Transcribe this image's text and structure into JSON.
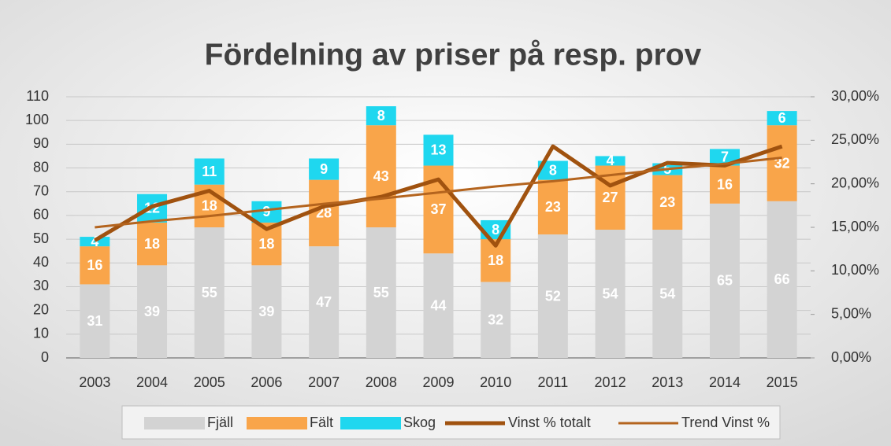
{
  "chart_data": {
    "type": "bar",
    "stacked": true,
    "title": "Fördelning av priser på resp. prov",
    "categories": [
      "2003",
      "2004",
      "2005",
      "2006",
      "2007",
      "2008",
      "2009",
      "2010",
      "2011",
      "2012",
      "2013",
      "2014",
      "2015"
    ],
    "series": [
      {
        "name": "Fjäll",
        "type": "bar",
        "color": "#d3d3d3",
        "values": [
          31,
          39,
          55,
          39,
          47,
          55,
          44,
          32,
          52,
          54,
          54,
          65,
          66
        ]
      },
      {
        "name": "Fält",
        "type": "bar",
        "color": "#f9a54a",
        "values": [
          16,
          18,
          18,
          18,
          28,
          43,
          37,
          18,
          23,
          27,
          23,
          16,
          32
        ]
      },
      {
        "name": "Skog",
        "type": "bar",
        "color": "#1fd7ef",
        "values": [
          4,
          12,
          11,
          9,
          9,
          8,
          13,
          8,
          8,
          4,
          5,
          7,
          6
        ]
      },
      {
        "name": "Vinst % totalt",
        "type": "line",
        "axis": "y2",
        "color": "#a0520f",
        "values": [
          13.5,
          17.4,
          19.2,
          14.8,
          17.4,
          18.5,
          20.5,
          12.9,
          24.3,
          19.8,
          22.4,
          22.1,
          24.3
        ]
      },
      {
        "name": "Trend Vinst %",
        "type": "line",
        "axis": "y2",
        "color": "#b4641e",
        "values": [
          15.0,
          15.7,
          16.3,
          17.0,
          17.7,
          18.3,
          19.0,
          19.7,
          20.3,
          21.0,
          21.7,
          22.3,
          23.0
        ]
      }
    ],
    "ylim": [
      0,
      110
    ],
    "yticks": [
      0,
      10,
      20,
      30,
      40,
      50,
      60,
      70,
      80,
      90,
      100,
      110
    ],
    "y2lim": [
      0,
      30
    ],
    "y2ticks": [
      {
        "value": 0,
        "label": "0,00%"
      },
      {
        "value": 5,
        "label": "5,00%"
      },
      {
        "value": 10,
        "label": "10,00%"
      },
      {
        "value": 15,
        "label": "15,00%"
      },
      {
        "value": 20,
        "label": "20,00%"
      },
      {
        "value": 25,
        "label": "25,00%"
      },
      {
        "value": 30,
        "label": "30,00%"
      }
    ],
    "grid": true,
    "legend": "bottom"
  }
}
